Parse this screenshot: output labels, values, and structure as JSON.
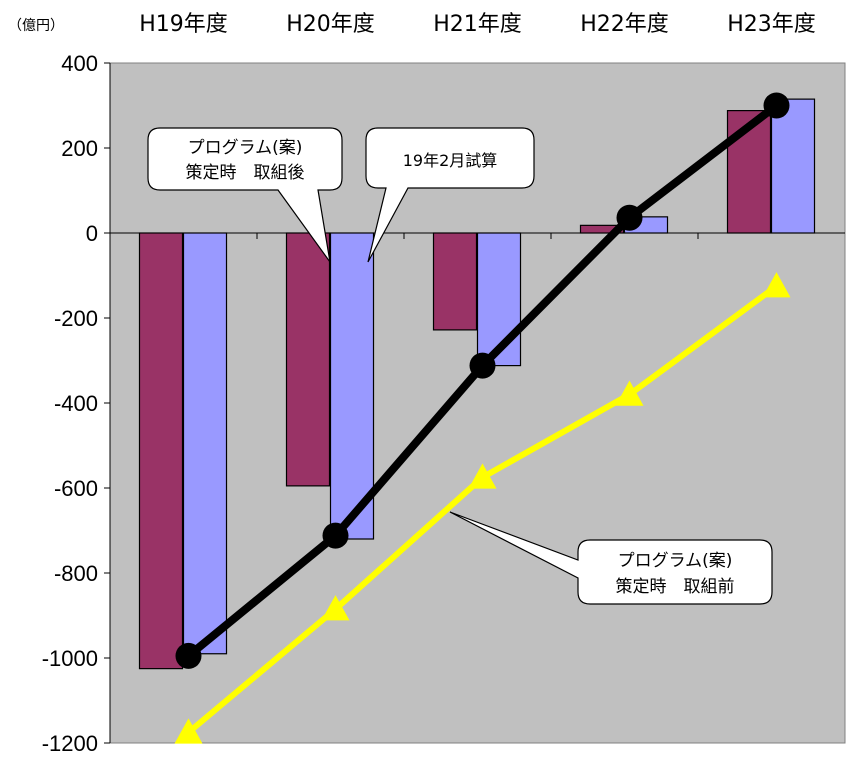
{
  "chart_data": {
    "type": "bar",
    "unit_label": "（億円）",
    "categories": [
      "H19年度",
      "H20年度",
      "H21年度",
      "H22年度",
      "H23年度"
    ],
    "ylim": [
      -1200,
      400
    ],
    "yticks": [
      400,
      200,
      0,
      -200,
      -400,
      -600,
      -800,
      -1000,
      -1200
    ],
    "ytick_labels": [
      "400",
      "200",
      "0",
      "-200",
      "-400",
      "-600",
      "-800",
      "-1000",
      "-1200"
    ],
    "grid": false,
    "bar_series": [
      {
        "color": "#993366",
        "values": [
          -1025,
          -595,
          -228,
          18,
          288
        ]
      },
      {
        "color": "#9999ff",
        "values": [
          -990,
          -720,
          -312,
          38,
          315
        ]
      }
    ],
    "line_series": [
      {
        "color": "#000000",
        "marker": "circle",
        "values": [
          -995,
          -712,
          -312,
          36,
          300
        ]
      },
      {
        "color": "#ffff00",
        "marker": "triangle",
        "values": [
          -1175,
          -885,
          -575,
          -380,
          -125
        ]
      }
    ],
    "annotations": [
      {
        "lines": [
          "プログラム(案)",
          "策定時　取組後"
        ]
      },
      {
        "lines": [
          "19年2月試算"
        ]
      },
      {
        "lines": [
          "プログラム(案)",
          "策定時　取組前"
        ]
      }
    ],
    "colors": {
      "plot_background": "#c0c0c0"
    }
  }
}
